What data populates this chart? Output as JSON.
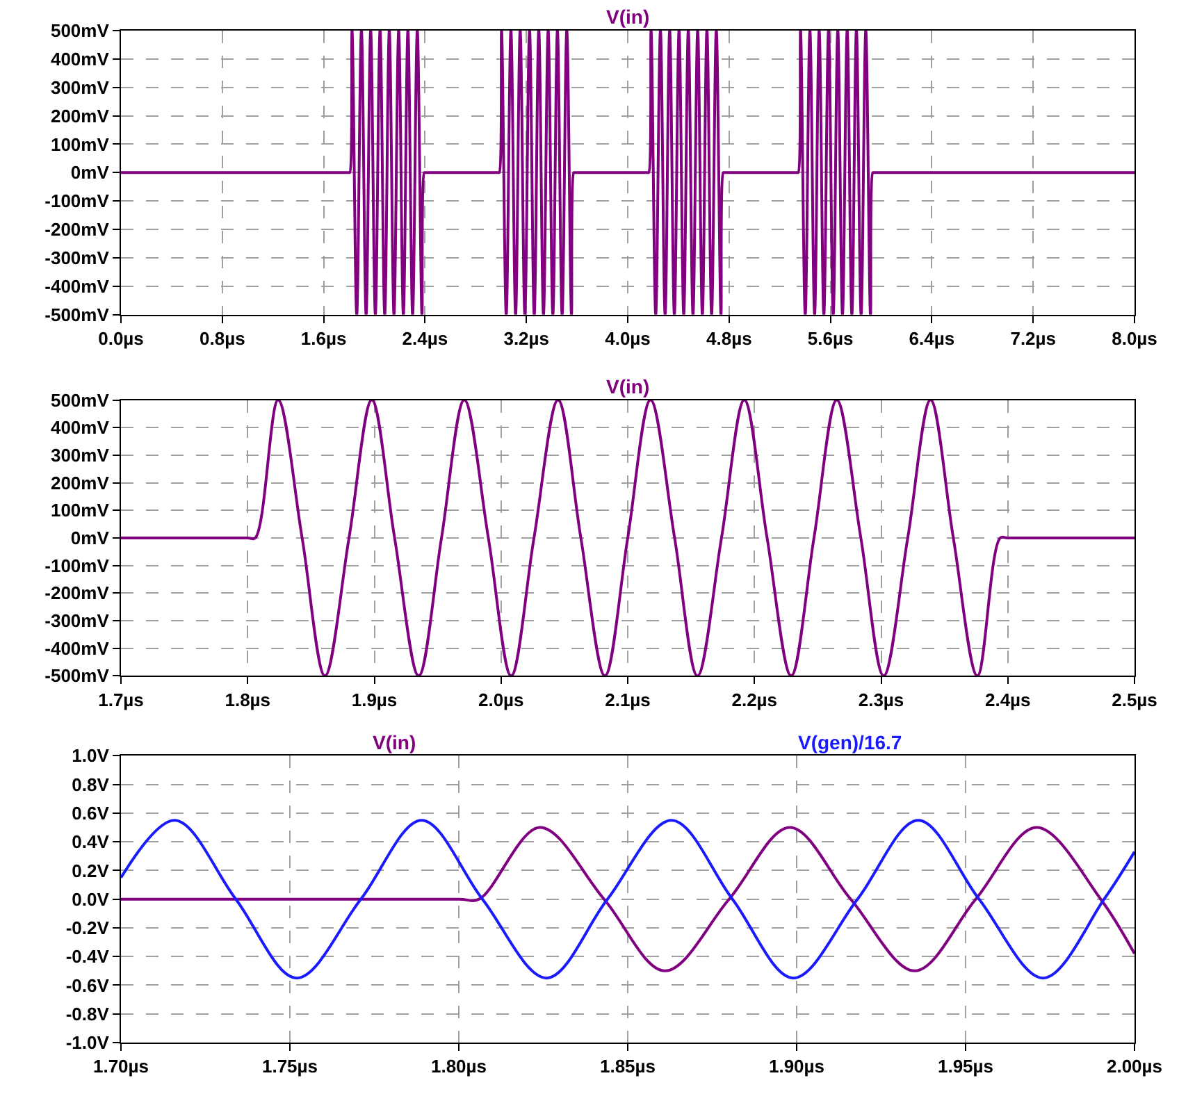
{
  "chart_data": [
    {
      "type": "line",
      "grid": true,
      "line_style": "solid",
      "xlim": [
        0,
        8
      ],
      "ylim": [
        -500,
        500
      ],
      "xticks": [
        {
          "value": 0,
          "label": "0.0µs"
        },
        {
          "value": 0.8,
          "label": "0.8µs"
        },
        {
          "value": 1.6,
          "label": "1.6µs"
        },
        {
          "value": 2.4,
          "label": "2.4µs"
        },
        {
          "value": 3.2,
          "label": "3.2µs"
        },
        {
          "value": 4.0,
          "label": "4.0µs"
        },
        {
          "value": 4.8,
          "label": "4.8µs"
        },
        {
          "value": 5.6,
          "label": "5.6µs"
        },
        {
          "value": 6.4,
          "label": "6.4µs"
        },
        {
          "value": 7.2,
          "label": "7.2µs"
        },
        {
          "value": 8.0,
          "label": "8.0µs"
        }
      ],
      "yticks": [
        {
          "value": -500,
          "label": "-500mV"
        },
        {
          "value": -400,
          "label": "-400mV"
        },
        {
          "value": -300,
          "label": "-300mV"
        },
        {
          "value": -200,
          "label": "-200mV"
        },
        {
          "value": -100,
          "label": "-100mV"
        },
        {
          "value": 0,
          "label": "0mV"
        },
        {
          "value": 100,
          "label": "100mV"
        },
        {
          "value": 200,
          "label": "200mV"
        },
        {
          "value": 300,
          "label": "300mV"
        },
        {
          "value": 400,
          "label": "400mV"
        },
        {
          "value": 500,
          "label": "500mV"
        }
      ],
      "series": [
        {
          "name": "V(in)",
          "color": "#800080",
          "x": [
            0,
            1.8,
            1.806,
            1.824,
            1.861,
            1.898,
            1.935,
            1.971,
            2.008,
            2.045,
            2.082,
            2.118,
            2.155,
            2.192,
            2.229,
            2.265,
            2.302,
            2.339,
            2.376,
            2.394,
            2.4,
            2.98,
            2.986,
            3.004,
            3.041,
            3.078,
            3.115,
            3.151,
            3.188,
            3.225,
            3.262,
            3.298,
            3.335,
            3.372,
            3.409,
            3.445,
            3.482,
            3.519,
            3.556,
            3.574,
            3.58,
            4.16,
            4.166,
            4.184,
            4.221,
            4.258,
            4.295,
            4.331,
            4.368,
            4.405,
            4.442,
            4.478,
            4.515,
            4.552,
            4.589,
            4.625,
            4.662,
            4.699,
            4.736,
            4.754,
            4.76,
            5.34,
            5.346,
            5.364,
            5.401,
            5.438,
            5.475,
            5.511,
            5.548,
            5.585,
            5.622,
            5.658,
            5.695,
            5.732,
            5.769,
            5.805,
            5.842,
            5.879,
            5.916,
            5.934,
            5.94,
            8.0
          ],
          "values": [
            0,
            0,
            0,
            500,
            -500,
            500,
            -500,
            500,
            -500,
            500,
            -500,
            500,
            -500,
            500,
            -500,
            500,
            -500,
            500,
            -500,
            0,
            0,
            0,
            0,
            500,
            -500,
            500,
            -500,
            500,
            -500,
            500,
            -500,
            500,
            -500,
            500,
            -500,
            500,
            -500,
            500,
            -500,
            0,
            0,
            0,
            0,
            500,
            -500,
            500,
            -500,
            500,
            -500,
            500,
            -500,
            500,
            -500,
            500,
            -500,
            500,
            -500,
            500,
            -500,
            0,
            0,
            0,
            0,
            500,
            -500,
            500,
            -500,
            500,
            -500,
            500,
            -500,
            500,
            -500,
            500,
            -500,
            500,
            -500,
            500,
            -500,
            0,
            0,
            0
          ]
        }
      ]
    },
    {
      "type": "line",
      "grid": true,
      "line_style": "solid",
      "xlim": [
        1.7,
        2.5
      ],
      "ylim": [
        -500,
        500
      ],
      "xticks": [
        {
          "value": 1.7,
          "label": "1.7µs"
        },
        {
          "value": 1.8,
          "label": "1.8µs"
        },
        {
          "value": 1.9,
          "label": "1.9µs"
        },
        {
          "value": 2.0,
          "label": "2.0µs"
        },
        {
          "value": 2.1,
          "label": "2.1µs"
        },
        {
          "value": 2.2,
          "label": "2.2µs"
        },
        {
          "value": 2.3,
          "label": "2.3µs"
        },
        {
          "value": 2.4,
          "label": "2.4µs"
        },
        {
          "value": 2.5,
          "label": "2.5µs"
        }
      ],
      "yticks": [
        {
          "value": -500,
          "label": "-500mV"
        },
        {
          "value": -400,
          "label": "-400mV"
        },
        {
          "value": -300,
          "label": "-300mV"
        },
        {
          "value": -200,
          "label": "-200mV"
        },
        {
          "value": -100,
          "label": "-100mV"
        },
        {
          "value": 0,
          "label": "0mV"
        },
        {
          "value": 100,
          "label": "100mV"
        },
        {
          "value": 200,
          "label": "200mV"
        },
        {
          "value": 300,
          "label": "300mV"
        },
        {
          "value": 400,
          "label": "400mV"
        },
        {
          "value": 500,
          "label": "500mV"
        }
      ],
      "series": [
        {
          "name": "V(in)",
          "color": "#800080",
          "x": [
            1.7,
            1.8,
            1.806,
            1.824,
            1.843,
            1.861,
            1.88,
            1.898,
            1.916,
            1.935,
            1.953,
            1.971,
            1.99,
            2.008,
            2.026,
            2.045,
            2.063,
            2.082,
            2.1,
            2.118,
            2.137,
            2.155,
            2.174,
            2.192,
            2.21,
            2.229,
            2.247,
            2.265,
            2.284,
            2.302,
            2.321,
            2.339,
            2.357,
            2.376,
            2.394,
            2.4,
            2.5
          ],
          "values": [
            0,
            0,
            0,
            500,
            0,
            -500,
            0,
            500,
            0,
            -500,
            0,
            500,
            0,
            -500,
            0,
            500,
            0,
            -500,
            0,
            500,
            0,
            -500,
            0,
            500,
            0,
            -500,
            0,
            500,
            0,
            -500,
            0,
            500,
            0,
            -500,
            0,
            0,
            0
          ]
        }
      ]
    },
    {
      "type": "line",
      "grid": true,
      "line_style": "solid",
      "xlim": [
        1.7,
        2.0
      ],
      "ylim": [
        -1,
        1
      ],
      "xticks": [
        {
          "value": 1.7,
          "label": "1.70µs"
        },
        {
          "value": 1.75,
          "label": "1.75µs"
        },
        {
          "value": 1.8,
          "label": "1.80µs"
        },
        {
          "value": 1.85,
          "label": "1.85µs"
        },
        {
          "value": 1.9,
          "label": "1.90µs"
        },
        {
          "value": 1.95,
          "label": "1.95µs"
        },
        {
          "value": 2.0,
          "label": "2.00µs"
        }
      ],
      "yticks": [
        {
          "value": -1,
          "label": "-1.0V"
        },
        {
          "value": -0.8,
          "label": "-0.8V"
        },
        {
          "value": -0.6,
          "label": "-0.6V"
        },
        {
          "value": -0.4,
          "label": "-0.4V"
        },
        {
          "value": -0.2,
          "label": "-0.2V"
        },
        {
          "value": 0,
          "label": "0.0V"
        },
        {
          "value": 0.2,
          "label": "0.2V"
        },
        {
          "value": 0.4,
          "label": "0.4V"
        },
        {
          "value": 0.6,
          "label": "0.6V"
        },
        {
          "value": 0.8,
          "label": "0.8V"
        },
        {
          "value": 1,
          "label": "1.0V"
        }
      ],
      "series": [
        {
          "name": "V(in)",
          "color": "#800080",
          "x": [
            1.7,
            1.8,
            1.806,
            1.824,
            1.843,
            1.861,
            1.88,
            1.898,
            1.916,
            1.935,
            1.953,
            1.971,
            1.99,
            2.0
          ],
          "values": [
            0,
            0,
            0,
            0.5,
            0,
            -0.5,
            0,
            0.5,
            0,
            -0.5,
            0,
            0.5,
            0,
            -0.38
          ]
        },
        {
          "name": "V(gen)/16.7",
          "color": "#1a1aff",
          "x": [
            1.7,
            1.716,
            1.734,
            1.752,
            1.771,
            1.789,
            1.807,
            1.826,
            1.844,
            1.863,
            1.881,
            1.899,
            1.918,
            1.936,
            1.954,
            1.973,
            1.991,
            2.0
          ],
          "values": [
            0.15,
            0.55,
            0,
            -0.55,
            0,
            0.55,
            0,
            -0.55,
            0,
            0.55,
            0,
            -0.55,
            0,
            0.55,
            0,
            -0.55,
            0,
            0.33
          ]
        }
      ]
    }
  ]
}
